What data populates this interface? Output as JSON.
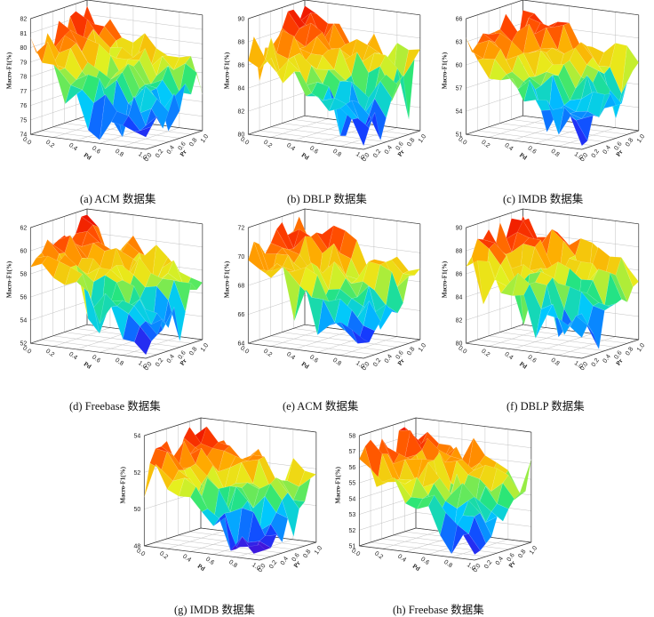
{
  "chart_data": [
    {
      "id": "a",
      "type": "surface3d",
      "caption": "(a) ACM 数据集",
      "zlabel": "Macro-F1(%)",
      "xlabel": "Pd",
      "ylabel": "Pr",
      "zticks": [
        "74",
        "75",
        "76",
        "77",
        "78",
        "79",
        "80",
        "81",
        "82"
      ],
      "xticks": [
        "0.0",
        "0.2",
        "0.4",
        "0.6",
        "0.8",
        "1.0"
      ],
      "yticks": [
        "0.0",
        "0.2",
        "0.4",
        "0.6",
        "0.8",
        "1.0"
      ],
      "zlim": [
        74,
        82.5
      ],
      "zmid": 78.5,
      "seed": 11
    },
    {
      "id": "b",
      "type": "surface3d",
      "caption": "(b) DBLP 数据集",
      "zlabel": "Macro-F1(%)",
      "xlabel": "Pd",
      "ylabel": "Pr",
      "zticks": [
        "80",
        "82",
        "84",
        "86",
        "88",
        "90"
      ],
      "xticks": [
        "0.0",
        "0.2",
        "0.4",
        "0.6",
        "0.8",
        "1.0"
      ],
      "yticks": [
        "0.0",
        "0.2",
        "0.4",
        "0.6",
        "0.8",
        "1.0"
      ],
      "zlim": [
        80,
        90
      ],
      "zmid": 86,
      "seed": 23
    },
    {
      "id": "c",
      "type": "surface3d",
      "caption": "(c) IMDB 数据集",
      "zlabel": "Macro-F1(%)",
      "xlabel": "Pd",
      "ylabel": "Pr",
      "zticks": [
        "51",
        "54",
        "57",
        "60",
        "63",
        "66"
      ],
      "xticks": [
        "0.0",
        "0.2",
        "0.4",
        "0.6",
        "0.8",
        "1.0"
      ],
      "yticks": [
        "0.0",
        "0.2",
        "0.4",
        "0.6",
        "0.8",
        "1.0"
      ],
      "zlim": [
        51,
        66
      ],
      "zmid": 60,
      "seed": 37
    },
    {
      "id": "d",
      "type": "surface3d",
      "caption": "(d) Freebase 数据集",
      "zlabel": "Macro-F1(%)",
      "xlabel": "Pd",
      "ylabel": "Pr",
      "zticks": [
        "52",
        "54",
        "56",
        "58",
        "60",
        "62"
      ],
      "xticks": [
        "0.0",
        "0.2",
        "0.4",
        "0.6",
        "0.8",
        "1.0"
      ],
      "yticks": [
        "0.0",
        "0.2",
        "0.4",
        "0.6",
        "0.8",
        "1.0"
      ],
      "zlim": [
        52,
        62.5
      ],
      "zmid": 58,
      "seed": 41
    },
    {
      "id": "e",
      "type": "surface3d",
      "caption": "(e) ACM 数据集",
      "zlabel": "Macro-F1(%)",
      "xlabel": "Pd",
      "ylabel": "Pr",
      "zticks": [
        "64",
        "66",
        "68",
        "70",
        "72"
      ],
      "xticks": [
        "0.0",
        "0.2",
        "0.4",
        "0.6",
        "0.8",
        "1.0"
      ],
      "yticks": [
        "0.0",
        "0.2",
        "0.4",
        "0.6",
        "0.8",
        "1.0"
      ],
      "zlim": [
        64,
        72.5
      ],
      "zmid": 69.5,
      "seed": 53
    },
    {
      "id": "f",
      "type": "surface3d",
      "caption": "(f) DBLP 数据集",
      "zlabel": "Macro-F1(%)",
      "xlabel": "Pd",
      "ylabel": "Pr",
      "zticks": [
        "80",
        "82",
        "84",
        "86",
        "88",
        "90"
      ],
      "xticks": [
        "0.0",
        "0.2",
        "0.4",
        "0.6",
        "0.8",
        "1.0"
      ],
      "yticks": [
        "0.0",
        "0.2",
        "0.4",
        "0.6",
        "0.8",
        "1.0"
      ],
      "zlim": [
        80,
        90
      ],
      "zmid": 86.5,
      "seed": 67
    },
    {
      "id": "g",
      "type": "surface3d",
      "caption": "(g) IMDB 数据集",
      "zlabel": "Macro-F1(%)",
      "xlabel": "Pd",
      "ylabel": "Pr",
      "zticks": [
        "48",
        "50",
        "52",
        "54"
      ],
      "xticks": [
        "0.0",
        "0.2",
        "0.4",
        "0.6",
        "0.8",
        "1.0"
      ],
      "yticks": [
        "0.0",
        "0.2",
        "0.4",
        "0.6",
        "0.8",
        "1.0"
      ],
      "zlim": [
        47.5,
        54.5
      ],
      "zmid": 51.5,
      "seed": 71
    },
    {
      "id": "h",
      "type": "surface3d",
      "caption": "(h) Freebase 数据集",
      "zlabel": "Macro-F1(%)",
      "xlabel": "Pd",
      "ylabel": "Pr",
      "zticks": [
        "51",
        "52",
        "53",
        "54",
        "55",
        "56",
        "57",
        "58"
      ],
      "xticks": [
        "0.0",
        "0.2",
        "0.4",
        "0.6",
        "0.8",
        "1.0"
      ],
      "yticks": [
        "0.0",
        "0.2",
        "0.4",
        "0.6",
        "0.8",
        "1.0"
      ],
      "zlim": [
        51,
        58.5
      ],
      "zmid": 56,
      "seed": 83
    }
  ]
}
